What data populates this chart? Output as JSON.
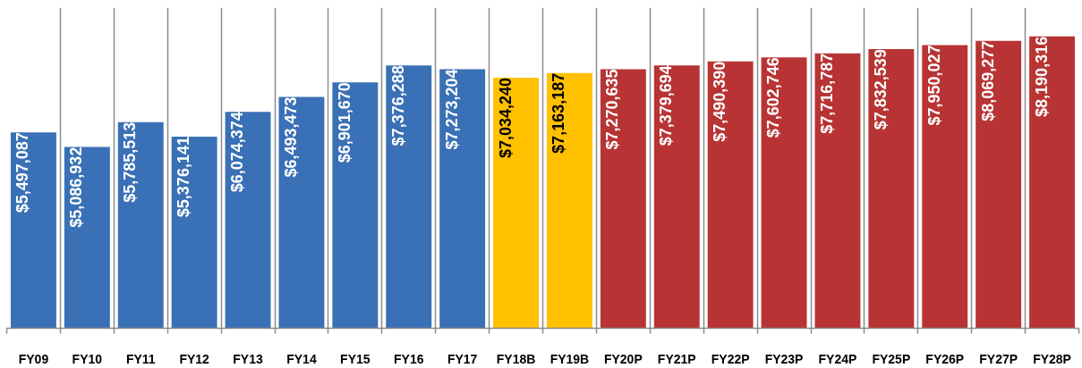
{
  "chart_data": {
    "type": "bar",
    "categories": [
      "FY09",
      "FY10",
      "FY11",
      "FY12",
      "FY13",
      "FY14",
      "FY15",
      "FY16",
      "FY17",
      "FY18B",
      "FY19B",
      "FY20P",
      "FY21P",
      "FY22P",
      "FY23P",
      "FY24P",
      "FY25P",
      "FY26P",
      "FY27P",
      "FY28P"
    ],
    "values": [
      5497087,
      5086932,
      5785513,
      5376141,
      6074374,
      6493473,
      6901670,
      7376288,
      7273204,
      7034240,
      7163187,
      7270635,
      7379694,
      7490390,
      7602746,
      7716787,
      7832539,
      7950027,
      8069277,
      8190316
    ],
    "value_labels": [
      "$5,497,087",
      "$5,086,932",
      "$5,785,513",
      "$5,376,141",
      "$6,074,374",
      "$6,493,473",
      "$6,901,670",
      "$7,376,288",
      "$7,273,204",
      "$7,034,240",
      "$7,163,187",
      "$7,270,635",
      "$7,379,694",
      "$7,490,390",
      "$7,602,746",
      "$7,716,787",
      "$7,832,539",
      "$7,950,027",
      "$8,069,277",
      "$8,190,316"
    ],
    "colors": [
      "#3a70b5",
      "#3a70b5",
      "#3a70b5",
      "#3a70b5",
      "#3a70b5",
      "#3a70b5",
      "#3a70b5",
      "#3a70b5",
      "#3a70b5",
      "#ffc000",
      "#ffc000",
      "#b83434",
      "#b83434",
      "#b83434",
      "#b83434",
      "#b83434",
      "#b83434",
      "#b83434",
      "#b83434",
      "#b83434"
    ],
    "grid": "x"
  }
}
